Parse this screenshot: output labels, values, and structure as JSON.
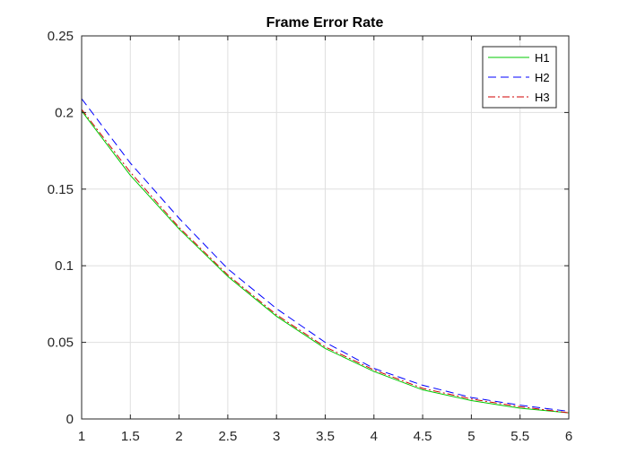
{
  "chart_data": {
    "type": "line",
    "title": "Frame Error Rate",
    "xlabel": "",
    "ylabel": "",
    "xlim": [
      1,
      6
    ],
    "ylim": [
      0,
      0.25
    ],
    "grid": true,
    "legend_position": "top-right",
    "x_ticks": [
      "1",
      "1.5",
      "2",
      "2.5",
      "3",
      "3.5",
      "4",
      "4.5",
      "5",
      "5.5",
      "6"
    ],
    "y_ticks": [
      "0",
      "0.05",
      "0.1",
      "0.15",
      "0.2",
      "0.25"
    ],
    "x": [
      1,
      1.5,
      2,
      2.5,
      3,
      3.5,
      4,
      4.5,
      5,
      5.5,
      6
    ],
    "series": [
      {
        "name": "H1",
        "color": "#00c800",
        "style": "solid",
        "values": [
          0.201,
          0.159,
          0.124,
          0.093,
          0.067,
          0.046,
          0.031,
          0.019,
          0.012,
          0.007,
          0.004
        ]
      },
      {
        "name": "H2",
        "color": "#0000ff",
        "style": "dashed",
        "values": [
          0.209,
          0.167,
          0.131,
          0.098,
          0.072,
          0.05,
          0.033,
          0.022,
          0.014,
          0.009,
          0.005
        ]
      },
      {
        "name": "H3",
        "color": "#d00000",
        "style": "dashdot",
        "values": [
          0.202,
          0.161,
          0.125,
          0.094,
          0.068,
          0.047,
          0.032,
          0.02,
          0.013,
          0.008,
          0.004
        ]
      }
    ]
  }
}
